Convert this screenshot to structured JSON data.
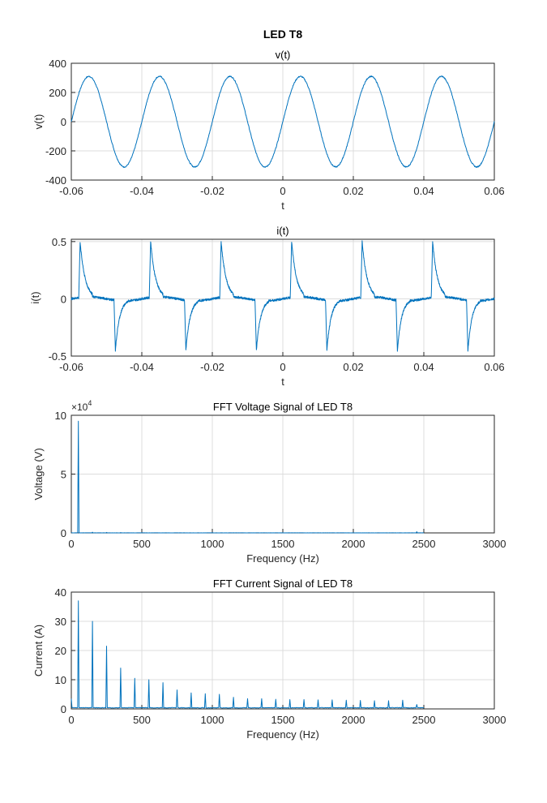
{
  "figure": {
    "supertitle": "LED T8"
  },
  "chart_data": [
    {
      "type": "line",
      "title": "v(t)",
      "xlabel": "t",
      "ylabel": "v(t)",
      "xlim": [
        -0.06,
        0.06
      ],
      "ylim": [
        -400,
        400
      ],
      "xticks": [
        -0.06,
        -0.04,
        -0.02,
        0,
        0.02,
        0.04,
        0.06
      ],
      "xtick_labels": [
        "-0.06",
        "-0.04",
        "-0.02",
        "0",
        "0.02",
        "0.04",
        "0.06"
      ],
      "yticks": [
        -400,
        -200,
        0,
        200,
        400
      ],
      "ytick_labels": [
        "-400",
        "-200",
        "0",
        "200",
        "400"
      ],
      "grid": true,
      "signal": {
        "shape": "sine",
        "amplitude": 310,
        "frequency_hz": 50,
        "phase_zero_crossing_t": -0.06
      },
      "color": "#0072bd"
    },
    {
      "type": "line",
      "title": "i(t)",
      "xlabel": "t",
      "ylabel": "i(t)",
      "xlim": [
        -0.06,
        0.06
      ],
      "ylim": [
        -0.5,
        0.52
      ],
      "xticks": [
        -0.06,
        -0.04,
        -0.02,
        0,
        0.02,
        0.04,
        0.06
      ],
      "xtick_labels": [
        "-0.06",
        "-0.04",
        "-0.02",
        "0",
        "0.02",
        "0.04",
        "0.06"
      ],
      "yticks": [
        -0.5,
        0,
        0.5
      ],
      "ytick_labels": [
        "-0.5",
        "0",
        "0.5"
      ],
      "grid": true,
      "positive_pulse_times": [
        -0.0575,
        -0.0375,
        -0.0175,
        0.0025,
        0.0225,
        0.0425
      ],
      "negative_pulse_times": [
        -0.0475,
        -0.0275,
        -0.0075,
        0.0125,
        0.0325,
        0.0525
      ],
      "pulse_peak": 0.5,
      "pulse_trough": -0.45,
      "baseline_offset": 0.03,
      "color": "#0072bd"
    },
    {
      "type": "line",
      "title": "FFT Voltage Signal of LED T8",
      "xlabel": "Frequency (Hz)",
      "ylabel": "Voltage  (V)",
      "xlim": [
        0,
        3000
      ],
      "ylim": [
        0,
        10
      ],
      "y_multiplier": "×10",
      "y_multiplier_exponent": "4",
      "xticks": [
        0,
        500,
        1000,
        1500,
        2000,
        2500,
        3000
      ],
      "xtick_labels": [
        "0",
        "500",
        "1000",
        "1500",
        "2000",
        "2500",
        "3000"
      ],
      "yticks": [
        0,
        5,
        10
      ],
      "ytick_labels": [
        "0",
        "5",
        "10"
      ],
      "grid": true,
      "x": [
        0,
        45,
        50,
        55,
        150,
        250,
        350,
        2450,
        2500
      ],
      "y": [
        0,
        0,
        9.5,
        0,
        0.06,
        0.04,
        0.03,
        0.1,
        0
      ],
      "data_extent_hz": 2500,
      "color": "#0072bd"
    },
    {
      "type": "line",
      "title": "FFT Current Signal of LED T8",
      "xlabel": "Frequency (Hz)",
      "ylabel": "Current  (A)",
      "xlim": [
        0,
        3000
      ],
      "ylim": [
        0,
        40
      ],
      "xticks": [
        0,
        500,
        1000,
        1500,
        2000,
        2500,
        3000
      ],
      "xtick_labels": [
        "0",
        "500",
        "1000",
        "1500",
        "2000",
        "2500",
        "3000"
      ],
      "yticks": [
        0,
        10,
        20,
        30,
        40
      ],
      "ytick_labels": [
        "0",
        "10",
        "20",
        "30",
        "40"
      ],
      "grid": true,
      "harmonic_frequencies": [
        50,
        150,
        250,
        350,
        450,
        550,
        650,
        750,
        850,
        950,
        1050,
        1150,
        1250,
        1350,
        1450,
        1550,
        1650,
        1750,
        1850,
        1950,
        2050,
        2150,
        2250,
        2350,
        2450
      ],
      "harmonic_amplitudes": [
        37,
        30,
        21.5,
        14,
        10.5,
        10,
        9,
        6.5,
        5.5,
        5.2,
        5,
        4,
        3.5,
        3.5,
        3.3,
        3.2,
        3.2,
        3.1,
        3.1,
        3,
        2.9,
        2.8,
        2.8,
        3,
        1.5
      ],
      "dc_value": 3.5,
      "data_extent_hz": 2500,
      "color": "#0072bd"
    }
  ]
}
